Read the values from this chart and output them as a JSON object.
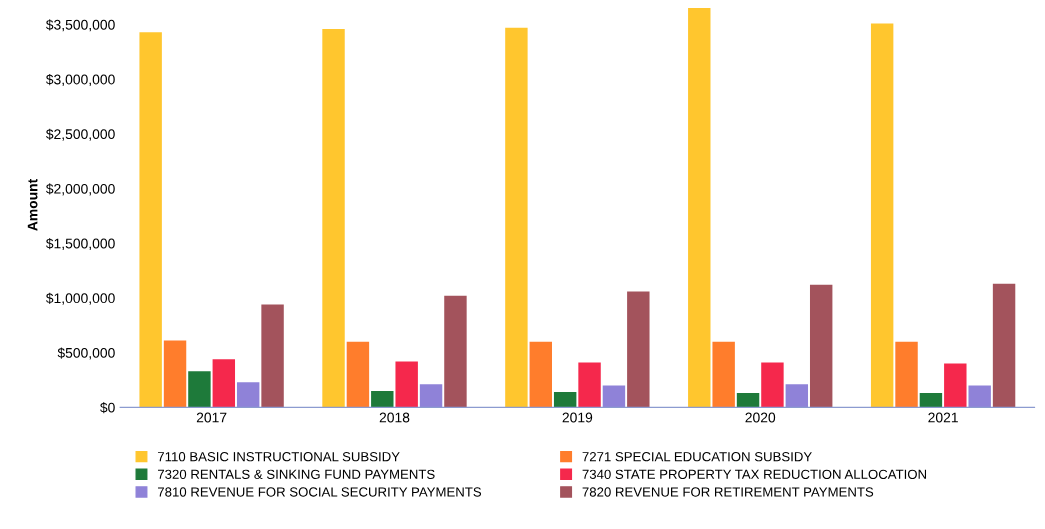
{
  "chart_data": {
    "type": "bar",
    "ylabel": "Amount",
    "categories": [
      "2017",
      "2018",
      "2019",
      "2020",
      "2021"
    ],
    "series": [
      {
        "name": "7110 BASIC INSTRUCTIONAL SUBSIDY",
        "color": "#ffc62e",
        "values": [
          3430000,
          3460000,
          3470000,
          3650000,
          3510000
        ]
      },
      {
        "name": "7271 SPECIAL EDUCATION SUBSIDY",
        "color": "#ff7d2c",
        "values": [
          610000,
          600000,
          600000,
          600000,
          600000
        ]
      },
      {
        "name": "7320 RENTALS & SINKING FUND PAYMENTS",
        "color": "#1e7a3a",
        "values": [
          330000,
          150000,
          140000,
          130000,
          130000
        ]
      },
      {
        "name": "7340 STATE PROPERTY TAX REDUCTION ALLOCATION",
        "color": "#f5284c",
        "values": [
          440000,
          420000,
          410000,
          410000,
          400000
        ]
      },
      {
        "name": "7810 REVENUE FOR SOCIAL SECURITY PAYMENTS",
        "color": "#8f82d8",
        "values": [
          230000,
          210000,
          200000,
          210000,
          200000
        ]
      },
      {
        "name": "7820 REVENUE FOR RETIREMENT PAYMENTS",
        "color": "#a3535c",
        "values": [
          940000,
          1020000,
          1060000,
          1120000,
          1130000
        ]
      }
    ],
    "ylim": [
      0,
      3700000
    ],
    "yticks": [
      {
        "value": 0,
        "label": "$0"
      },
      {
        "value": 500000,
        "label": "$500,000"
      },
      {
        "value": 1000000,
        "label": "$1,000,000"
      },
      {
        "value": 1500000,
        "label": "$1,500,000"
      },
      {
        "value": 2000000,
        "label": "$2,000,000"
      },
      {
        "value": 2500000,
        "label": "$2,500,000"
      },
      {
        "value": 3000000,
        "label": "$3,000,000"
      },
      {
        "value": 3500000,
        "label": "$3,500,000"
      }
    ],
    "grid": false,
    "legend": "bottom"
  }
}
